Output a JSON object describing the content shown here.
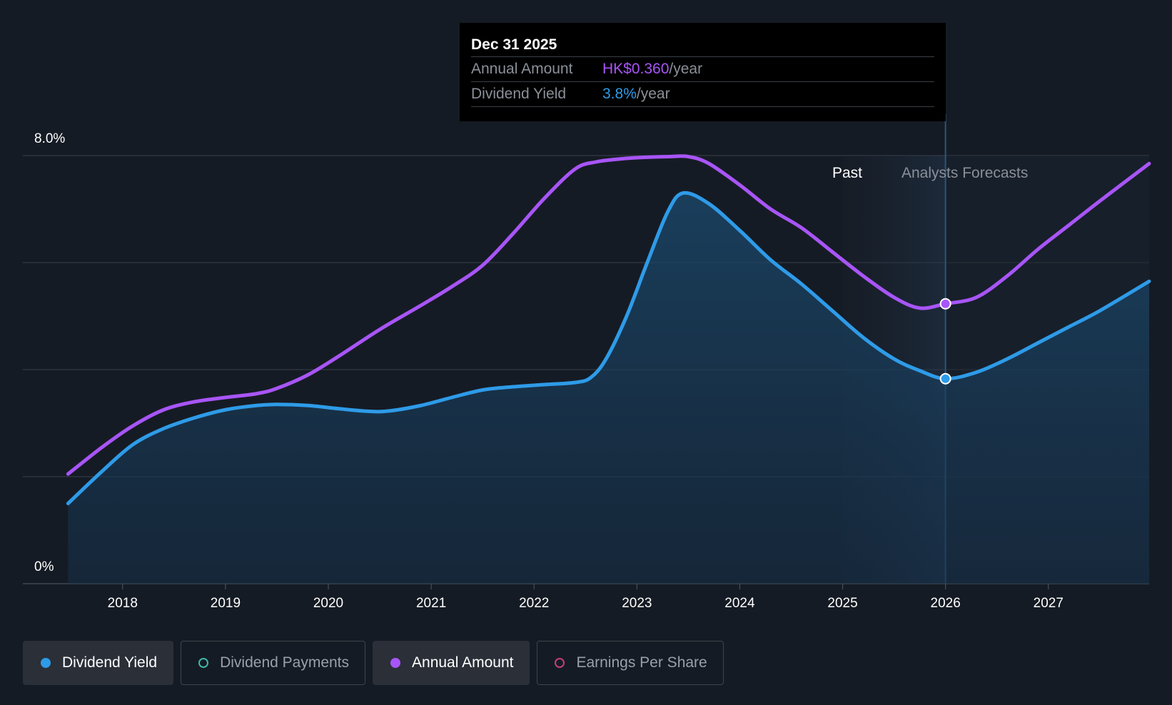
{
  "tooltip": {
    "date": "Dec 31 2025",
    "rows": [
      {
        "label": "Annual Amount",
        "value": "HK$0.360",
        "suffix": "/year",
        "color": "#a855f7"
      },
      {
        "label": "Dividend Yield",
        "value": "3.8%",
        "suffix": "/year",
        "color": "#2e9be8"
      }
    ]
  },
  "regions": {
    "past_label": "Past",
    "forecast_label": "Analysts Forecasts"
  },
  "legend": [
    {
      "label": "Dividend Yield",
      "color": "#2e9be8",
      "filled": true,
      "active": true
    },
    {
      "label": "Dividend Payments",
      "color": "#3fb8a8",
      "filled": false,
      "active": false
    },
    {
      "label": "Annual Amount",
      "color": "#a855f7",
      "filled": true,
      "active": true
    },
    {
      "label": "Earnings Per Share",
      "color": "#c2417a",
      "filled": false,
      "active": false
    }
  ],
  "chart_data": {
    "type": "line",
    "title": "",
    "xlabel": "",
    "ylabel": "",
    "ylim": [
      0,
      8
    ],
    "xlim": [
      2017.03,
      2027.98
    ],
    "y_tick_labels": [
      "8.0%",
      "0%"
    ],
    "x_ticks": [
      2018,
      2019,
      2020,
      2021,
      2022,
      2023,
      2024,
      2025,
      2026,
      2027
    ],
    "grid": true,
    "past_forecast_divider": 2026.0,
    "highlight_band": [
      2025.0,
      2026.0
    ],
    "series": [
      {
        "name": "Dividend Yield",
        "color": "#2e9be8",
        "area": true,
        "x": [
          2017.47,
          2017.8,
          2018.1,
          2018.4,
          2018.7,
          2019.0,
          2019.3,
          2019.5,
          2019.8,
          2020.1,
          2020.4,
          2020.6,
          2020.9,
          2021.2,
          2021.5,
          2021.8,
          2022.1,
          2022.4,
          2022.55,
          2022.7,
          2022.9,
          2023.1,
          2023.3,
          2023.45,
          2023.7,
          2024.0,
          2024.3,
          2024.6,
          2024.9,
          2025.2,
          2025.5,
          2025.75,
          2026.0,
          2026.3,
          2026.6,
          2026.9,
          2027.2,
          2027.5,
          2027.98
        ],
        "values": [
          1.5,
          2.1,
          2.6,
          2.9,
          3.1,
          3.25,
          3.33,
          3.35,
          3.33,
          3.27,
          3.22,
          3.23,
          3.33,
          3.48,
          3.62,
          3.68,
          3.72,
          3.76,
          3.85,
          4.2,
          5.0,
          6.0,
          6.95,
          7.3,
          7.1,
          6.6,
          6.05,
          5.6,
          5.1,
          4.6,
          4.2,
          3.98,
          3.83,
          3.95,
          4.2,
          4.5,
          4.8,
          5.1,
          5.65
        ]
      },
      {
        "name": "Annual Amount",
        "color": "#a855f7",
        "area": false,
        "x": [
          2017.47,
          2017.8,
          2018.1,
          2018.4,
          2018.7,
          2019.0,
          2019.3,
          2019.5,
          2019.8,
          2020.1,
          2020.5,
          2020.9,
          2021.2,
          2021.5,
          2021.8,
          2022.1,
          2022.4,
          2022.6,
          2022.8,
          2023.0,
          2023.3,
          2023.5,
          2023.7,
          2024.0,
          2024.3,
          2024.6,
          2024.9,
          2025.2,
          2025.5,
          2025.75,
          2026.0,
          2026.3,
          2026.6,
          2026.9,
          2027.2,
          2027.5,
          2027.98
        ],
        "values": [
          2.05,
          2.55,
          2.95,
          3.25,
          3.4,
          3.48,
          3.55,
          3.65,
          3.9,
          4.25,
          4.75,
          5.2,
          5.55,
          5.95,
          6.55,
          7.2,
          7.75,
          7.88,
          7.93,
          7.96,
          7.98,
          7.98,
          7.85,
          7.45,
          7.0,
          6.65,
          6.2,
          5.75,
          5.35,
          5.15,
          5.23,
          5.35,
          5.75,
          6.25,
          6.7,
          7.15,
          7.85
        ]
      }
    ]
  }
}
